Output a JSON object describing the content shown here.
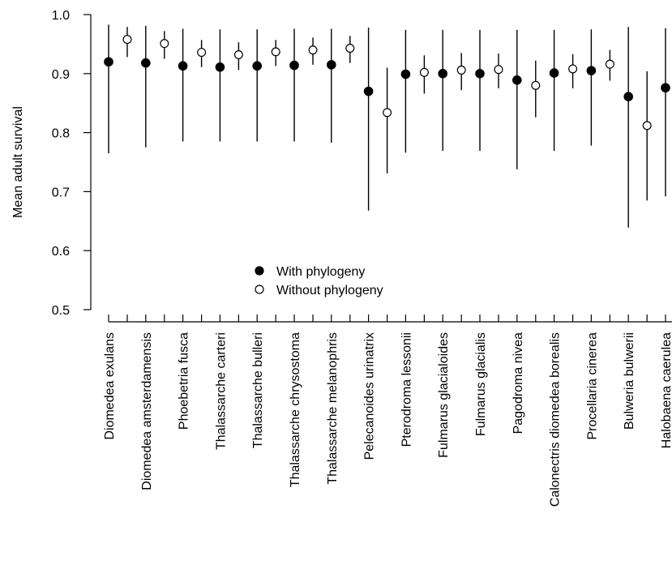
{
  "chart_data": {
    "type": "scatter",
    "ylabel": "Mean adult survival",
    "xlabel": "",
    "ylim": [
      0.5,
      1.0
    ],
    "yticks": [
      0.5,
      0.6,
      0.7,
      0.8,
      0.9,
      1.0
    ],
    "ytick_labels": [
      "0.5",
      "0.6",
      "0.7",
      "0.8",
      "0.9",
      "1.0"
    ],
    "legend_position": "center",
    "grid": false,
    "species": [
      "Diomedea exulans",
      "Diomedea amsterdamensis",
      "Phoebetria fusca",
      "Thalassarche carteri",
      "Thalassarche bulleri",
      "Thalassarche chrysostoma",
      "Thalassarche melanophris",
      "Pelecanoides urinatrix",
      "Pterodroma lessonii",
      "Fulmarus glacialoides",
      "Fulmarus glacialis",
      "Pagodroma nivea",
      "Calonectris diomedea borealis",
      "Procellaria cinerea",
      "Bulweria bulwerii",
      "Halobaena caerulea"
    ],
    "series": [
      {
        "name": "With phylogeny",
        "marker": "filled-circle",
        "color": "#000000",
        "values": [
          0.92,
          0.918,
          0.913,
          0.911,
          0.913,
          0.914,
          0.915,
          0.87,
          0.899,
          0.9,
          0.9,
          0.889,
          0.901,
          0.905,
          0.861,
          0.876
        ],
        "lower": [
          0.765,
          0.775,
          0.785,
          0.785,
          0.785,
          0.785,
          0.783,
          0.668,
          0.766,
          0.769,
          0.769,
          0.738,
          0.769,
          0.778,
          0.639,
          0.692
        ],
        "upper": [
          0.983,
          0.981,
          0.976,
          0.975,
          0.975,
          0.976,
          0.976,
          0.978,
          0.974,
          0.974,
          0.974,
          0.974,
          0.974,
          0.975,
          0.979,
          0.977
        ]
      },
      {
        "name": "Without phylogeny",
        "marker": "open-circle",
        "color": "#000000",
        "values": [
          0.958,
          0.951,
          0.936,
          0.932,
          0.937,
          0.94,
          0.943,
          0.834,
          0.902,
          0.906,
          0.907,
          0.88,
          0.908,
          0.916,
          0.812,
          null
        ],
        "lower": [
          0.928,
          0.925,
          0.911,
          0.906,
          0.913,
          0.915,
          0.918,
          0.731,
          0.866,
          0.872,
          0.875,
          0.826,
          0.875,
          0.888,
          0.685,
          null
        ],
        "upper": [
          0.979,
          0.972,
          0.957,
          0.953,
          0.957,
          0.961,
          0.964,
          0.91,
          0.931,
          0.935,
          0.934,
          0.922,
          0.933,
          0.94,
          0.904,
          null
        ]
      }
    ]
  }
}
